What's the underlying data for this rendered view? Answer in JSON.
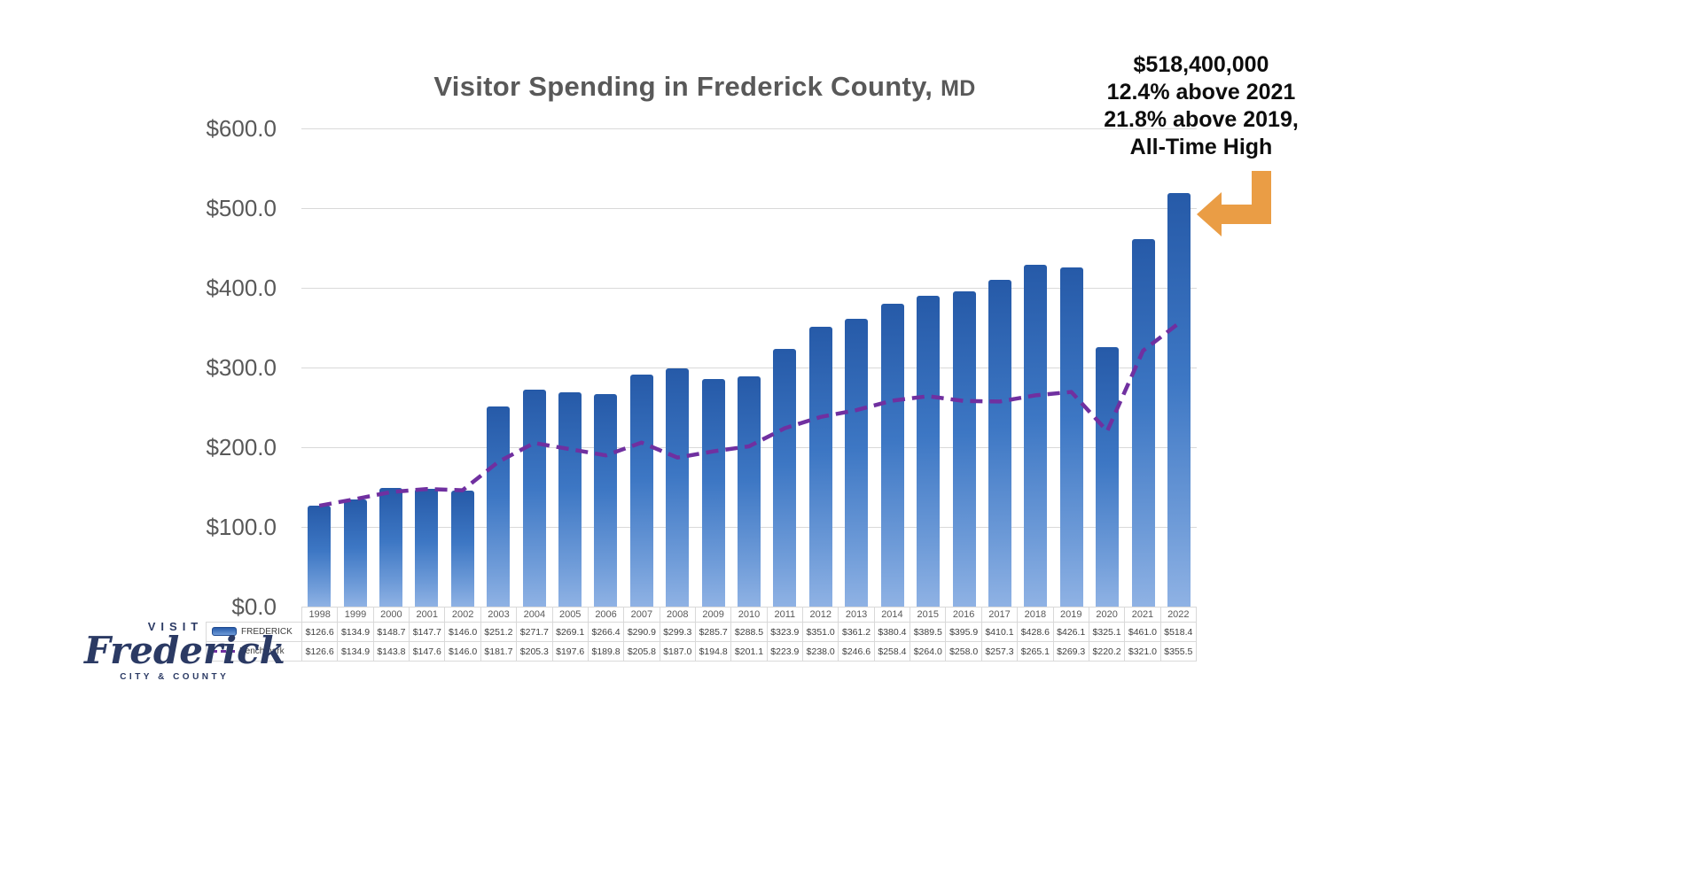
{
  "title": {
    "main": "Visitor Spending in Frederick County,",
    "suffix": "MD"
  },
  "annotation": {
    "lines": [
      "$518,400,000",
      "12.4% above 2021",
      "21.8% above 2019,",
      "All-Time High"
    ]
  },
  "colors": {
    "bar": "#2F6BBE",
    "benchmark": "#7030A0",
    "arrow": "#EA9D45",
    "logo": "#2B3A64"
  },
  "logo": {
    "visit": "VISIT",
    "name": "Frederick",
    "sub": "CITY & COUNTY"
  },
  "chart_data": {
    "type": "bar",
    "title": "Visitor Spending in Frederick County, MD",
    "categories": [
      "1998",
      "1999",
      "2000",
      "2001",
      "2002",
      "2003",
      "2004",
      "2005",
      "2006",
      "2007",
      "2008",
      "2009",
      "2010",
      "2011",
      "2012",
      "2013",
      "2014",
      "2015",
      "2016",
      "2017",
      "2018",
      "2019",
      "2020",
      "2021",
      "2022"
    ],
    "series": [
      {
        "name": "FREDERICK",
        "type": "bar",
        "color": "#2F6BBE",
        "values": [
          126.6,
          134.9,
          148.7,
          147.7,
          146.0,
          251.2,
          271.7,
          269.1,
          266.4,
          290.9,
          299.3,
          285.7,
          288.5,
          323.9,
          351.0,
          361.2,
          380.4,
          389.5,
          395.9,
          410.1,
          428.6,
          426.1,
          325.1,
          461.0,
          518.4
        ]
      },
      {
        "name": "Benchmark",
        "type": "line",
        "dashed": true,
        "color": "#7030A0",
        "values": [
          126.6,
          134.9,
          143.8,
          147.6,
          146.0,
          181.7,
          205.3,
          197.6,
          189.8,
          205.8,
          187.0,
          194.8,
          201.1,
          223.9,
          238.0,
          246.6,
          258.4,
          264.0,
          258.0,
          257.3,
          265.1,
          269.3,
          220.2,
          321.0,
          355.5
        ]
      }
    ],
    "xlabel": "",
    "ylabel": "",
    "ylim": [
      0,
      600
    ],
    "y_ticks": [
      "$600.0",
      "$500.0",
      "$400.0",
      "$300.0",
      "$200.0",
      "$100.0",
      "$0.0"
    ],
    "value_prefix": "$",
    "grid": true,
    "legend_position": "table-left"
  }
}
